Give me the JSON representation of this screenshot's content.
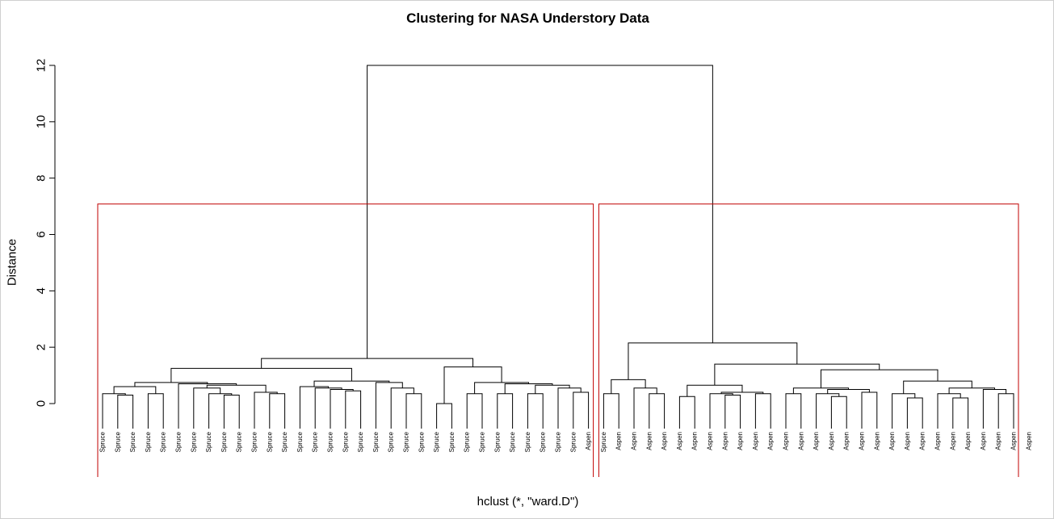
{
  "chart_data": {
    "type": "dendrogram",
    "title": "Clustering for NASA Understory Data",
    "xlabel": "hclust (*, \"ward.D\")",
    "ylabel": "Distance",
    "ylim": [
      0,
      12
    ],
    "y_ticks": [
      0,
      2,
      4,
      6,
      8,
      10,
      12
    ],
    "cut_boxes": 2,
    "box_color": "#c00000",
    "line_color": "#000000",
    "leaf_labels": [
      "Spruce",
      "Spruce",
      "Spruce",
      "Spruce",
      "Spruce",
      "Spruce",
      "Spruce",
      "Spruce",
      "Spruce",
      "Spruce",
      "Spruce",
      "Spruce",
      "Spruce",
      "Spruce",
      "Spruce",
      "Spruce",
      "Spruce",
      "Spruce",
      "Spruce",
      "Spruce",
      "Spruce",
      "Spruce",
      "Spruce",
      "Spruce",
      "Spruce",
      "Spruce",
      "Spruce",
      "Spruce",
      "Spruce",
      "Spruce",
      "Spruce",
      "Spruce",
      "Aspen",
      "Spruce",
      "Aspen",
      "Aspen",
      "Aspen",
      "Aspen",
      "Aspen",
      "Aspen",
      "Aspen",
      "Aspen",
      "Aspen",
      "Aspen",
      "Aspen",
      "Aspen",
      "Aspen",
      "Aspen",
      "Aspen",
      "Aspen",
      "Aspen",
      "Aspen",
      "Aspen",
      "Aspen",
      "Aspen",
      "Aspen",
      "Aspen",
      "Aspen",
      "Aspen",
      "Aspen",
      "Aspen",
      "Aspen"
    ],
    "tree": [
      12.0,
      [
        1.6,
        [
          1.25,
          [
            0.75,
            [
              0.6,
              [
                0.35,
                "L0",
                [
                  0.3,
                  "L1",
                  "L2"
                ]
              ],
              [
                0.35,
                "L3",
                "L4"
              ]
            ],
            [
              0.7,
              "L5",
              [
                0.65,
                [
                  0.55,
                  "L6",
                  [
                    0.35,
                    "L7",
                    [
                      0.3,
                      "L8",
                      "L9"
                    ]
                  ]
                ],
                [
                  0.4,
                  "L10",
                  [
                    0.35,
                    "L11",
                    "L12"
                  ]
                ]
              ]
            ]
          ],
          [
            0.8,
            [
              0.6,
              "L13",
              [
                0.55,
                "L14",
                [
                  0.5,
                  "L15",
                  [
                    0.45,
                    "L16",
                    "L17"
                  ]
                ]
              ]
            ],
            [
              0.75,
              "L18",
              [
                0.55,
                "L19",
                [
                  0.35,
                  "L20",
                  "L21"
                ]
              ]
            ]
          ]
        ],
        [
          1.3,
          [
            0.0,
            "L22",
            "L23"
          ],
          [
            0.75,
            [
              0.35,
              "L24",
              "L25"
            ],
            [
              0.7,
              [
                0.35,
                "L26",
                "L27"
              ],
              [
                0.65,
                [
                  0.35,
                  "L28",
                  "L29"
                ],
                [
                  0.55,
                  "L30",
                  [
                    0.4,
                    "L31",
                    "L32"
                  ]
                ]
              ]
            ]
          ]
        ]
      ],
      [
        2.15,
        [
          0.85,
          [
            0.35,
            "L33",
            "L34"
          ],
          [
            0.55,
            "L35",
            [
              0.35,
              "L36",
              "L37"
            ]
          ]
        ],
        [
          1.4,
          [
            0.65,
            [
              0.25,
              "L38",
              "L39"
            ],
            [
              0.4,
              [
                0.35,
                "L40",
                [
                  0.3,
                  "L41",
                  "L42"
                ]
              ],
              [
                0.35,
                "L43",
                "L44"
              ]
            ]
          ],
          [
            1.2,
            [
              0.55,
              [
                0.35,
                "L45",
                "L46"
              ],
              [
                0.5,
                [
                  0.35,
                  "L47",
                  [
                    0.25,
                    "L48",
                    "L49"
                  ]
                ],
                [
                  0.4,
                  "L50",
                  "L51"
                ]
              ]
            ],
            [
              0.8,
              [
                0.35,
                "L52",
                [
                  0.2,
                  "L53",
                  "L54"
                ]
              ],
              [
                0.55,
                [
                  0.35,
                  "L55",
                  [
                    0.2,
                    "L56",
                    "L57"
                  ]
                ],
                [
                  0.5,
                  "L58",
                  [
                    0.35,
                    "L59",
                    "L60"
                  ]
                ]
              ]
            ]
          ]
        ]
      ]
    ]
  }
}
